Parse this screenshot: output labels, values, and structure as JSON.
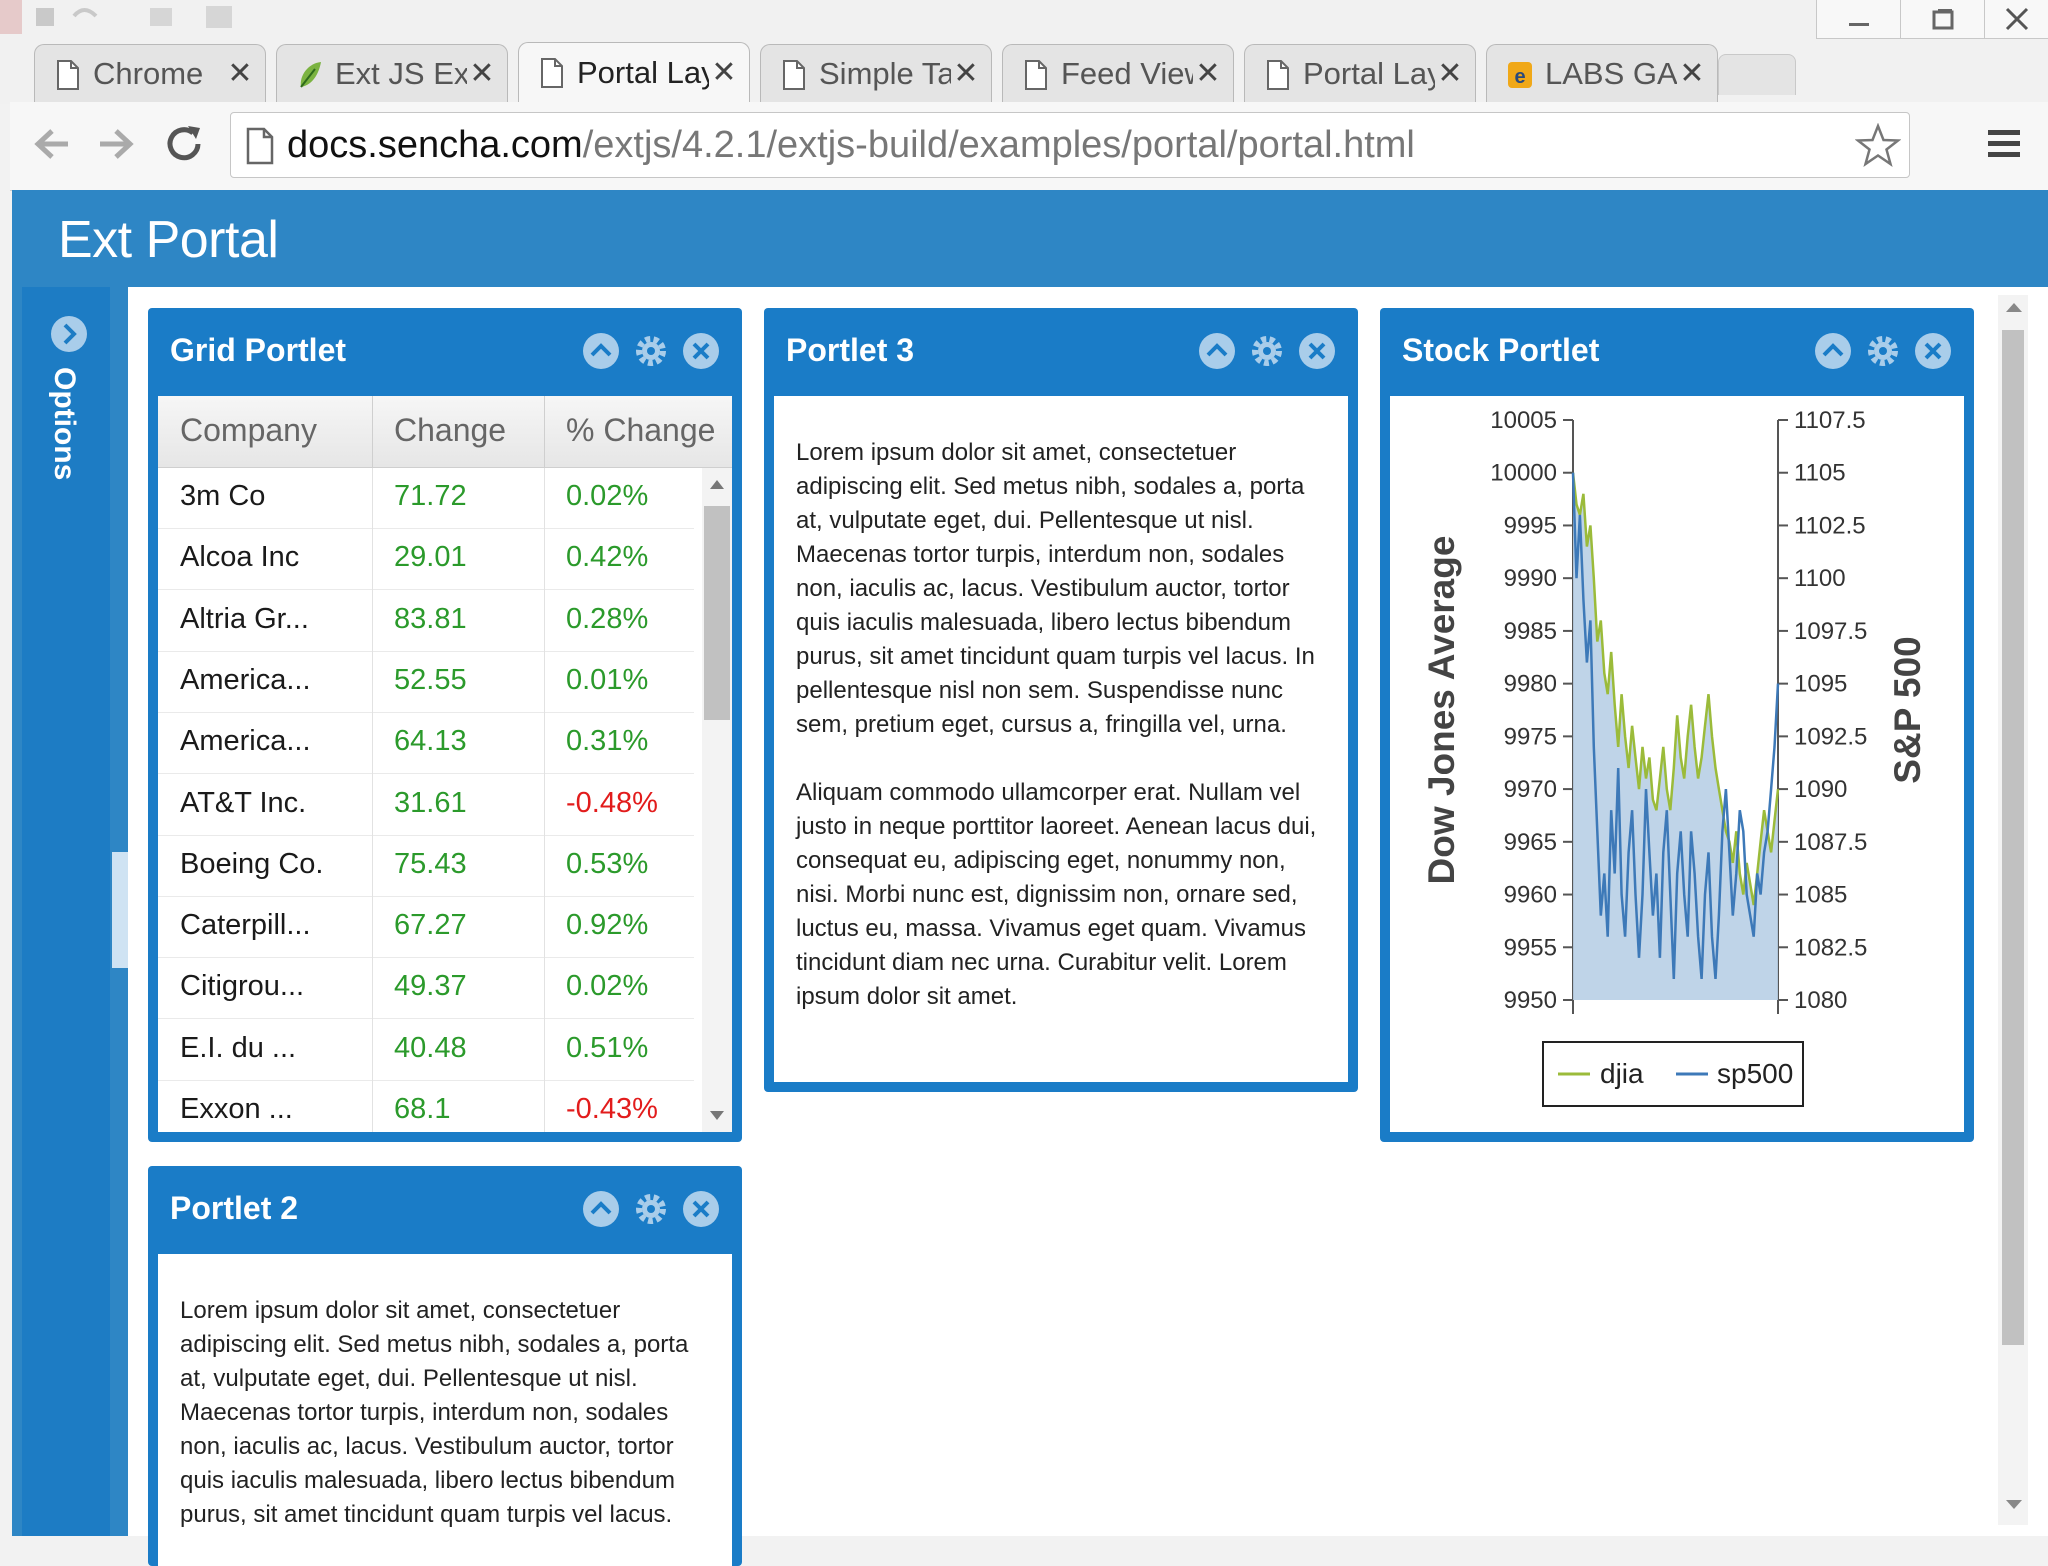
{
  "browser": {
    "tabs": [
      {
        "title": "Chrome",
        "icon": "page-icon",
        "active": false
      },
      {
        "title": "Ext JS Exa",
        "icon": "sencha-leaf-icon",
        "active": false
      },
      {
        "title": "Portal Lay",
        "icon": "page-icon",
        "active": true
      },
      {
        "title": "Simple Ta",
        "icon": "page-icon",
        "active": false
      },
      {
        "title": "Feed View",
        "icon": "page-icon",
        "active": false
      },
      {
        "title": "Portal Lay",
        "icon": "page-icon",
        "active": false
      },
      {
        "title": "LABS GAI",
        "icon": "labs-icon",
        "active": false
      }
    ],
    "tab_close_glyph": "✕",
    "url_host": "docs.sencha.com",
    "url_path": "/extjs/4.2.1/extjs-build/examples/portal/portal.html"
  },
  "app": {
    "title": "Ext Portal",
    "options_label": "Options"
  },
  "grid_portlet": {
    "title": "Grid Portlet",
    "columns": [
      "Company",
      "Change",
      "% Change"
    ],
    "rows": [
      {
        "company": "3m Co",
        "change": "71.72",
        "pct": "0.02%",
        "negative": false
      },
      {
        "company": "Alcoa Inc",
        "change": "29.01",
        "pct": "0.42%",
        "negative": false
      },
      {
        "company": "Altria Gr...",
        "change": "83.81",
        "pct": "0.28%",
        "negative": false
      },
      {
        "company": "America...",
        "change": "52.55",
        "pct": "0.01%",
        "negative": false
      },
      {
        "company": "America...",
        "change": "64.13",
        "pct": "0.31%",
        "negative": false
      },
      {
        "company": "AT&T Inc.",
        "change": "31.61",
        "pct": "-0.48%",
        "negative": true
      },
      {
        "company": "Boeing Co.",
        "change": "75.43",
        "pct": "0.53%",
        "negative": false
      },
      {
        "company": "Caterpill...",
        "change": "67.27",
        "pct": "0.92%",
        "negative": false
      },
      {
        "company": "Citigrou...",
        "change": "49.37",
        "pct": "0.02%",
        "negative": false
      },
      {
        "company": "E.I. du ...",
        "change": "40.48",
        "pct": "0.51%",
        "negative": false
      },
      {
        "company": "Exxon ...",
        "change": "68.1",
        "pct": "-0.43%",
        "negative": true
      }
    ]
  },
  "portlet3": {
    "title": "Portlet 3",
    "paragraphs": [
      "Lorem ipsum dolor sit amet, consectetuer adipiscing elit. Sed metus nibh, sodales a, porta at, vulputate eget, dui. Pellentesque ut nisl. Maecenas tortor turpis, interdum non, sodales non, iaculis ac, lacus. Vestibulum auctor, tortor quis iaculis malesuada, libero lectus bibendum purus, sit amet tincidunt quam turpis vel lacus. In pellentesque nisl non sem. Suspendisse nunc sem, pretium eget, cursus a, fringilla vel, urna.",
      "Aliquam commodo ullamcorper erat. Nullam vel justo in neque porttitor laoreet. Aenean lacus dui, consequat eu, adipiscing eget, nonummy non, nisi. Morbi nunc est, dignissim non, ornare sed, luctus eu, massa. Vivamus eget quam. Vivamus tincidunt diam nec urna. Curabitur velit. Lorem ipsum dolor sit amet."
    ]
  },
  "portlet2": {
    "title": "Portlet 2",
    "paragraph": "Lorem ipsum dolor sit amet, consectetuer adipiscing elit. Sed metus nibh, sodales a, porta at, vulputate eget, dui. Pellentesque ut nisl. Maecenas tortor turpis, interdum non, sodales non, iaculis ac, lacus. Vestibulum auctor, tortor quis iaculis malesuada, libero lectus bibendum purus, sit amet tincidunt quam turpis vel lacus."
  },
  "stock_portlet": {
    "title": "Stock Portlet"
  },
  "colors": {
    "accent": "#1a7cc7",
    "header_bar": "#2e86c5",
    "djia": "#9bbb3a",
    "sp500": "#3d79b8",
    "area_fill": "#b8cfe6",
    "positive": "#2b9a2b",
    "negative": "#e21c1c"
  },
  "chart_data": {
    "type": "line",
    "title": "",
    "ylabel": "Dow Jones Average",
    "y2label": "S&P 500",
    "ylim": [
      9950,
      10005
    ],
    "y2lim": [
      1080,
      1107.5
    ],
    "yticks": [
      "10005",
      "10000",
      "9995",
      "9990",
      "9985",
      "9980",
      "9975",
      "9970",
      "9965",
      "9960",
      "9955",
      "9950"
    ],
    "y2ticks": [
      "1107.5",
      "1105",
      "1102.5",
      "1100",
      "1097.5",
      "1095",
      "1092.5",
      "1090",
      "1087.5",
      "1085",
      "1082.5",
      "1080"
    ],
    "legend_position": "bottom",
    "series": [
      {
        "name": "djia",
        "axis": "left",
        "fill": true,
        "values": [
          10000,
          9997,
          9996,
          9998,
          9993,
          9995,
          9990,
          9984,
          9986,
          9981,
          9979,
          9983,
          9978,
          9974,
          9979,
          9975,
          9972,
          9976,
          9973,
          9970,
          9974,
          9971,
          9973,
          9969,
          9968,
          9971,
          9974,
          9970,
          9968,
          9972,
          9977,
          9973,
          9971,
          9975,
          9978,
          9974,
          9971,
          9973,
          9976,
          9979,
          9975,
          9972,
          9970,
          9968,
          9966,
          9965,
          9963,
          9966,
          9962,
          9960,
          9963,
          9961,
          9959,
          9962,
          9965,
          9968,
          9966,
          9964,
          9967,
          9970
        ]
      },
      {
        "name": "sp500",
        "axis": "right",
        "fill": false,
        "values": [
          1105,
          1100,
          1103,
          1099,
          1096,
          1098,
          1092,
          1088,
          1084,
          1086,
          1083,
          1089,
          1086,
          1091,
          1085,
          1083,
          1087,
          1089,
          1085,
          1082,
          1085,
          1090,
          1087,
          1084,
          1086,
          1082,
          1087,
          1089,
          1085,
          1081,
          1086,
          1088,
          1085,
          1083,
          1088,
          1086,
          1083,
          1081,
          1085,
          1087,
          1083,
          1081,
          1084,
          1088,
          1090,
          1087,
          1084,
          1086,
          1089,
          1088,
          1085,
          1084,
          1083,
          1086,
          1085,
          1087,
          1088,
          1090,
          1092,
          1095
        ]
      }
    ]
  }
}
